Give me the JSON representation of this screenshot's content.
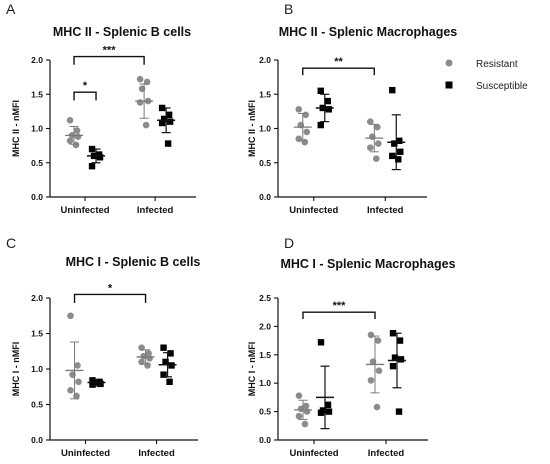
{
  "legend": {
    "entries": [
      {
        "label": "Resistant",
        "color": "#8c8c8c",
        "marker": "circle"
      },
      {
        "label": "Susceptible",
        "color": "#000000",
        "marker": "square"
      }
    ],
    "placement": "right"
  },
  "chart_data": [
    {
      "letter": "A",
      "type": "scatter",
      "title": "MHC II - Splenic B cells",
      "ylabel": "MHC II - nMFI",
      "ylim": [
        0,
        2.0
      ],
      "yticks": [
        "0.0",
        "0.5",
        "1.0",
        "1.5",
        "2.0"
      ],
      "categories": [
        "Uninfected",
        "Infected"
      ],
      "series": [
        {
          "name": "Resistant",
          "color": "#8c8c8c",
          "marker": "circle",
          "groups": [
            {
              "category": "Uninfected",
              "points": [
                1.12,
                0.97,
                0.9,
                0.88,
                0.82,
                0.76
              ],
              "mean": 0.9,
              "sd": 0.13
            },
            {
              "category": "Infected",
              "points": [
                1.72,
                1.68,
                1.58,
                1.4,
                1.38,
                1.05
              ],
              "mean": 1.4,
              "sd": 0.25
            }
          ]
        },
        {
          "name": "Susceptible",
          "color": "#000000",
          "marker": "square",
          "groups": [
            {
              "category": "Uninfected",
              "points": [
                0.7,
                0.62,
                0.6,
                0.58,
                0.45
              ],
              "mean": 0.6,
              "sd": 0.1
            },
            {
              "category": "Infected",
              "points": [
                1.3,
                1.2,
                1.14,
                1.1,
                1.08,
                0.78
              ],
              "mean": 1.12,
              "sd": 0.18
            }
          ]
        }
      ],
      "significance": [
        {
          "label": "*",
          "from": "Uninfected-Resistant",
          "to": "Uninfected-Susceptible",
          "y": 1.53,
          "drop": 0.12
        },
        {
          "label": "***",
          "from": "Uninfected-Resistant",
          "to": "Infected-Resistant",
          "y": 2.05,
          "drop": 0.12
        }
      ]
    },
    {
      "letter": "B",
      "type": "scatter",
      "title": "MHC II - Splenic Macrophages",
      "ylabel": "MHC II - nMFI",
      "ylim": [
        0,
        2.0
      ],
      "yticks": [
        "0.0",
        "0.5",
        "1.0",
        "1.5",
        "2.0"
      ],
      "categories": [
        "Uninfected",
        "Infected"
      ],
      "series": [
        {
          "name": "Resistant",
          "color": "#8c8c8c",
          "marker": "circle",
          "groups": [
            {
              "category": "Uninfected",
              "points": [
                1.28,
                1.2,
                1.05,
                0.95,
                0.85,
                0.8
              ],
              "mean": 1.02,
              "sd": 0.2
            },
            {
              "category": "Infected",
              "points": [
                1.1,
                1.02,
                0.88,
                0.78,
                0.72,
                0.56
              ],
              "mean": 0.86,
              "sd": 0.2
            }
          ]
        },
        {
          "name": "Susceptible",
          "color": "#000000",
          "marker": "square",
          "groups": [
            {
              "category": "Uninfected",
              "points": [
                1.55,
                1.4,
                1.3,
                1.28,
                1.05
              ],
              "mean": 1.3,
              "sd": 0.2
            },
            {
              "category": "Infected",
              "points": [
                1.56,
                0.82,
                0.78,
                0.66,
                0.6,
                0.55
              ],
              "mean": 0.8,
              "sd": 0.4
            }
          ]
        }
      ],
      "significance": [
        {
          "label": "**",
          "from": "Uninfected-Resistant",
          "to": "Infected-Resistant",
          "y": 1.88,
          "drop": 0.1
        }
      ]
    },
    {
      "letter": "C",
      "type": "scatter",
      "title": "MHC I - Splenic B cells",
      "ylabel": "MHC I - nMFI",
      "ylim": [
        0,
        2.0
      ],
      "yticks": [
        "0.0",
        "0.5",
        "1.0",
        "1.5",
        "2.0"
      ],
      "categories": [
        "Uninfected",
        "Infected"
      ],
      "series": [
        {
          "name": "Resistant",
          "color": "#8c8c8c",
          "marker": "circle",
          "groups": [
            {
              "category": "Uninfected",
              "points": [
                1.75,
                1.05,
                0.92,
                0.82,
                0.7,
                0.62
              ],
              "mean": 0.98,
              "sd": 0.4
            },
            {
              "category": "Infected",
              "points": [
                1.3,
                1.22,
                1.18,
                1.15,
                1.1,
                1.05
              ],
              "mean": 1.17,
              "sd": 0.1
            }
          ]
        },
        {
          "name": "Susceptible",
          "color": "#000000",
          "marker": "square",
          "groups": [
            {
              "category": "Uninfected",
              "points": [
                0.84,
                0.82,
                0.8,
                0.79,
                0.78
              ],
              "mean": 0.81,
              "sd": 0.04
            },
            {
              "category": "Infected",
              "points": [
                1.3,
                1.22,
                1.1,
                1.05,
                0.92,
                0.82
              ],
              "mean": 1.06,
              "sd": 0.17
            }
          ]
        }
      ],
      "significance": [
        {
          "label": "*",
          "from": "Uninfected-Resistant",
          "to": "Infected-Resistant",
          "y": 2.05,
          "drop": 0.12
        }
      ]
    },
    {
      "letter": "D",
      "type": "scatter",
      "title": "MHC I - Splenic Macrophages",
      "ylabel": "MHC I - nMFI",
      "ylim": [
        0,
        2.5
      ],
      "yticks": [
        "0.0",
        "0.5",
        "1.0",
        "1.5",
        "2.0",
        "2.5"
      ],
      "categories": [
        "Uninfected",
        "Infected"
      ],
      "series": [
        {
          "name": "Resistant",
          "color": "#8c8c8c",
          "marker": "circle",
          "groups": [
            {
              "category": "Uninfected",
              "points": [
                0.78,
                0.6,
                0.55,
                0.5,
                0.42,
                0.28
              ],
              "mean": 0.53,
              "sd": 0.17
            },
            {
              "category": "Infected",
              "points": [
                1.85,
                1.75,
                1.38,
                1.22,
                1.05,
                0.58
              ],
              "mean": 1.33,
              "sd": 0.5
            }
          ]
        },
        {
          "name": "Susceptible",
          "color": "#000000",
          "marker": "square",
          "groups": [
            {
              "category": "Uninfected",
              "points": [
                1.72,
                0.62,
                0.52,
                0.5,
                0.48
              ],
              "mean": 0.75,
              "sd": 0.55
            },
            {
              "category": "Infected",
              "points": [
                1.88,
                1.75,
                1.45,
                1.42,
                1.3,
                0.5
              ],
              "mean": 1.4,
              "sd": 0.48
            }
          ]
        }
      ],
      "significance": [
        {
          "label": "***",
          "from": "Uninfected-Resistant",
          "to": "Infected-Resistant",
          "y": 2.25,
          "drop": 0.12
        }
      ]
    }
  ]
}
